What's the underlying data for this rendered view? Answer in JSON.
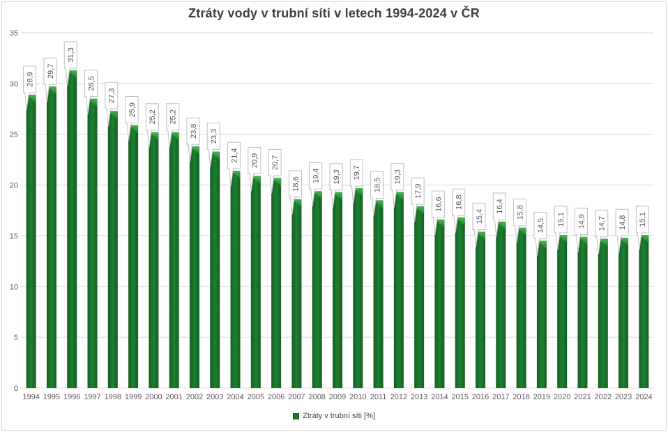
{
  "chart_data": {
    "type": "bar",
    "title": "Ztráty vody v trubní síti v letech 1994-2024 v ČR",
    "categories": [
      "1994",
      "1995",
      "1996",
      "1997",
      "1998",
      "1999",
      "2000",
      "2001",
      "2002",
      "2003",
      "2004",
      "2005",
      "2006",
      "2007",
      "2008",
      "2009",
      "2010",
      "2011",
      "2012",
      "2013",
      "2014",
      "2015",
      "2016",
      "2017",
      "2018",
      "2019",
      "2020",
      "2021",
      "2022",
      "2023",
      "2024"
    ],
    "values": [
      28.9,
      29.7,
      31.3,
      28.5,
      27.3,
      25.9,
      25.2,
      25.2,
      23.8,
      23.3,
      21.4,
      20.9,
      20.7,
      18.6,
      19.4,
      19.3,
      19.7,
      18.5,
      19.3,
      17.9,
      16.6,
      16.8,
      15.4,
      16.4,
      15.8,
      14.5,
      15.1,
      14.9,
      14.7,
      14.8,
      15.1
    ],
    "data_labels": [
      "28,9",
      "29,7",
      "31,3",
      "28,5",
      "27,3",
      "25,9",
      "25,2",
      "25,2",
      "23,8",
      "23,3",
      "21,4",
      "20,9",
      "20,7",
      "18,6",
      "19,4",
      "19,3",
      "19,7",
      "18,5",
      "19,3",
      "17,9",
      "16,6",
      "16,8",
      "15,4",
      "16,4",
      "15,8",
      "14,5",
      "15,1",
      "14,9",
      "14,7",
      "14,8",
      "15,1"
    ],
    "xlabel": "",
    "ylabel": "",
    "ylim": [
      0,
      35
    ],
    "yticks": [
      0,
      5,
      10,
      15,
      20,
      25,
      30,
      35
    ],
    "grid": true,
    "legend": {
      "position": "bottom",
      "label": "Ztráty v trubní síti [%]"
    },
    "colors": {
      "bar_mid": "#1E8030",
      "bar_edge": "#135F21",
      "bar_highlight": "#45B14F",
      "gridline": "#D9D9D9",
      "axis_text": "#595959",
      "title_text": "#3F3F3F",
      "callout_border": "#BFBFBF",
      "callout_fill": "#FFFFFF",
      "callout_text": "#595959"
    }
  }
}
